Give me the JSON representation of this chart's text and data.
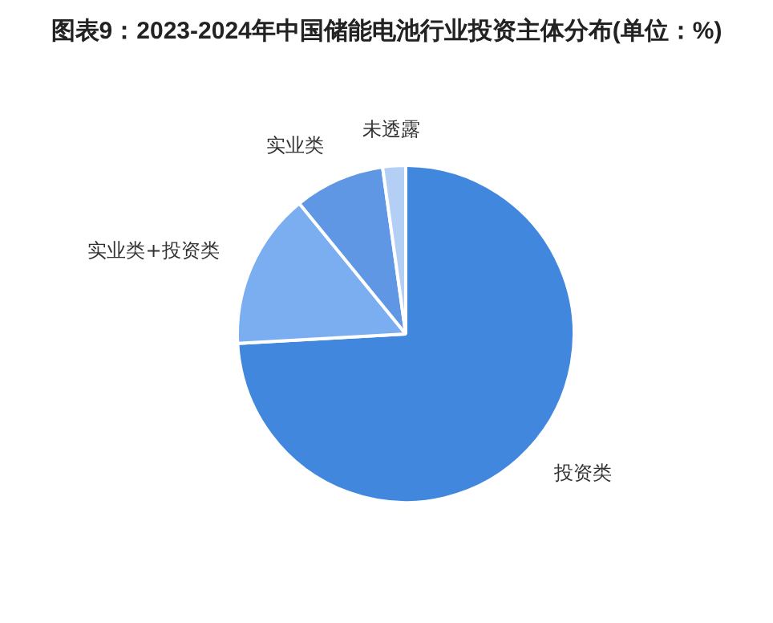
{
  "chart_data": {
    "type": "pie",
    "title": "图表9：2023-2024年中国储能电池行业投资主体分布(单位：%)",
    "categories": [
      "投资类",
      "实业类+投资类",
      "实业类",
      "未透露"
    ],
    "values": [
      74.1,
      15.0,
      8.7,
      2.2
    ],
    "colors": [
      "#4287de",
      "#7aaef0",
      "#5f97e4",
      "#b4cff5"
    ],
    "legend": false
  }
}
